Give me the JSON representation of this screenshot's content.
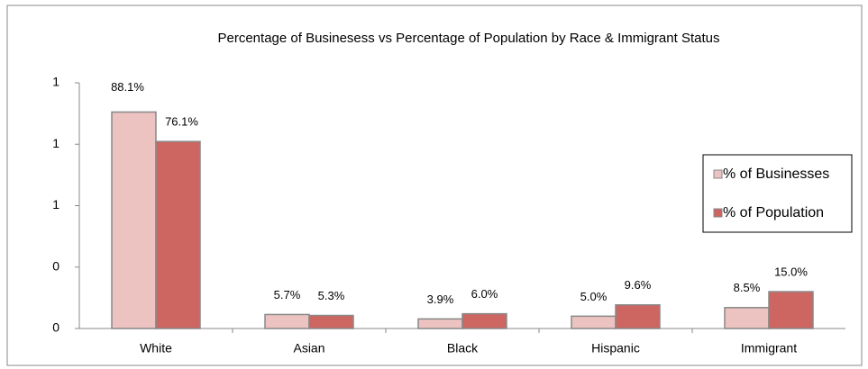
{
  "chart_data": {
    "type": "bar",
    "title": "Percentage of Businesess vs Percentage of Population by Race & Immigrant Status",
    "categories": [
      "White",
      "Asian",
      "Black",
      "Hispanic",
      "Immigrant"
    ],
    "series": [
      {
        "name": "% of Businesses",
        "color": "#ecc3c1",
        "values": [
          0.881,
          0.057,
          0.039,
          0.05,
          0.085
        ],
        "value_labels": [
          "88.1%",
          "5.7%",
          "3.9%",
          "5.0%",
          "8.5%"
        ]
      },
      {
        "name": "% of Population",
        "color": "#cd6660",
        "values": [
          0.761,
          0.053,
          0.06,
          0.096,
          0.15
        ],
        "value_labels": [
          "76.1%",
          "5.3%",
          "6.0%",
          "9.6%",
          "15.0%"
        ]
      }
    ],
    "ylim": [
      0,
      1
    ],
    "yticks": [
      0,
      {
        "value": 0.25,
        "label": "0"
      },
      {
        "value": 0.5,
        "label": "1"
      },
      {
        "value": 0.75,
        "label": "1"
      },
      1
    ],
    "legend": "right"
  }
}
